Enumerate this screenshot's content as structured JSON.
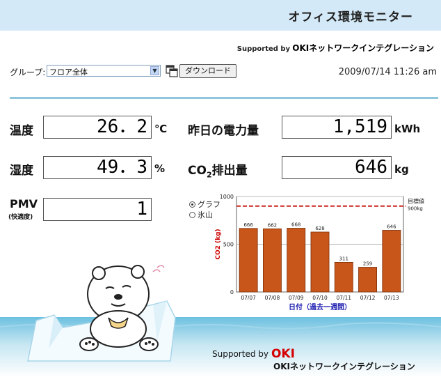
{
  "header": {
    "title": "オフィス環境モニター",
    "supported_by": "Supported by",
    "company": "OKIネットワークインテグレーション"
  },
  "toolbar": {
    "group_label": "グループ:",
    "group_value": "フロア全体",
    "download_label": "ダウンロード",
    "datetime": "2009/07/14 11:26 am"
  },
  "metrics": {
    "temperature": {
      "label": "温度",
      "value": "26．2",
      "unit": "℃"
    },
    "humidity": {
      "label": "湿度",
      "value": "49．3",
      "unit": "%"
    },
    "pmv": {
      "label": "PMV",
      "sublabel": "(快適度)",
      "value": "1"
    },
    "yesterday_power": {
      "label": "昨日の電力量",
      "value": "1,519",
      "unit": "kWh"
    },
    "co2": {
      "label_prefix": "CO",
      "label_sub": "2",
      "label_suffix": "排出量",
      "value": "646",
      "unit": "kg"
    }
  },
  "view_toggle": {
    "graph_label": "グラフ",
    "iceberg_label": "氷山",
    "selected": "graph"
  },
  "chart_data": {
    "type": "bar",
    "categories": [
      "07/07",
      "07/08",
      "07/09",
      "07/10",
      "07/11",
      "07/12",
      "07/13"
    ],
    "values": [
      666,
      662,
      668,
      628,
      311,
      259,
      646
    ],
    "xlabel": "日付（過去一週間）",
    "ylabel": "CO2 (kg)",
    "ylim": [
      0,
      1000
    ],
    "yticks": [
      0,
      500,
      1000
    ],
    "target": {
      "value": 900,
      "label": "目標値",
      "sublabel": "900kg"
    },
    "bar_color": "#c8561a",
    "target_color": "#c8231e",
    "grid": true
  },
  "footer": {
    "supported_by": "Supported by",
    "brand": "OKI",
    "company": "OKIネットワークインテグレーション"
  }
}
